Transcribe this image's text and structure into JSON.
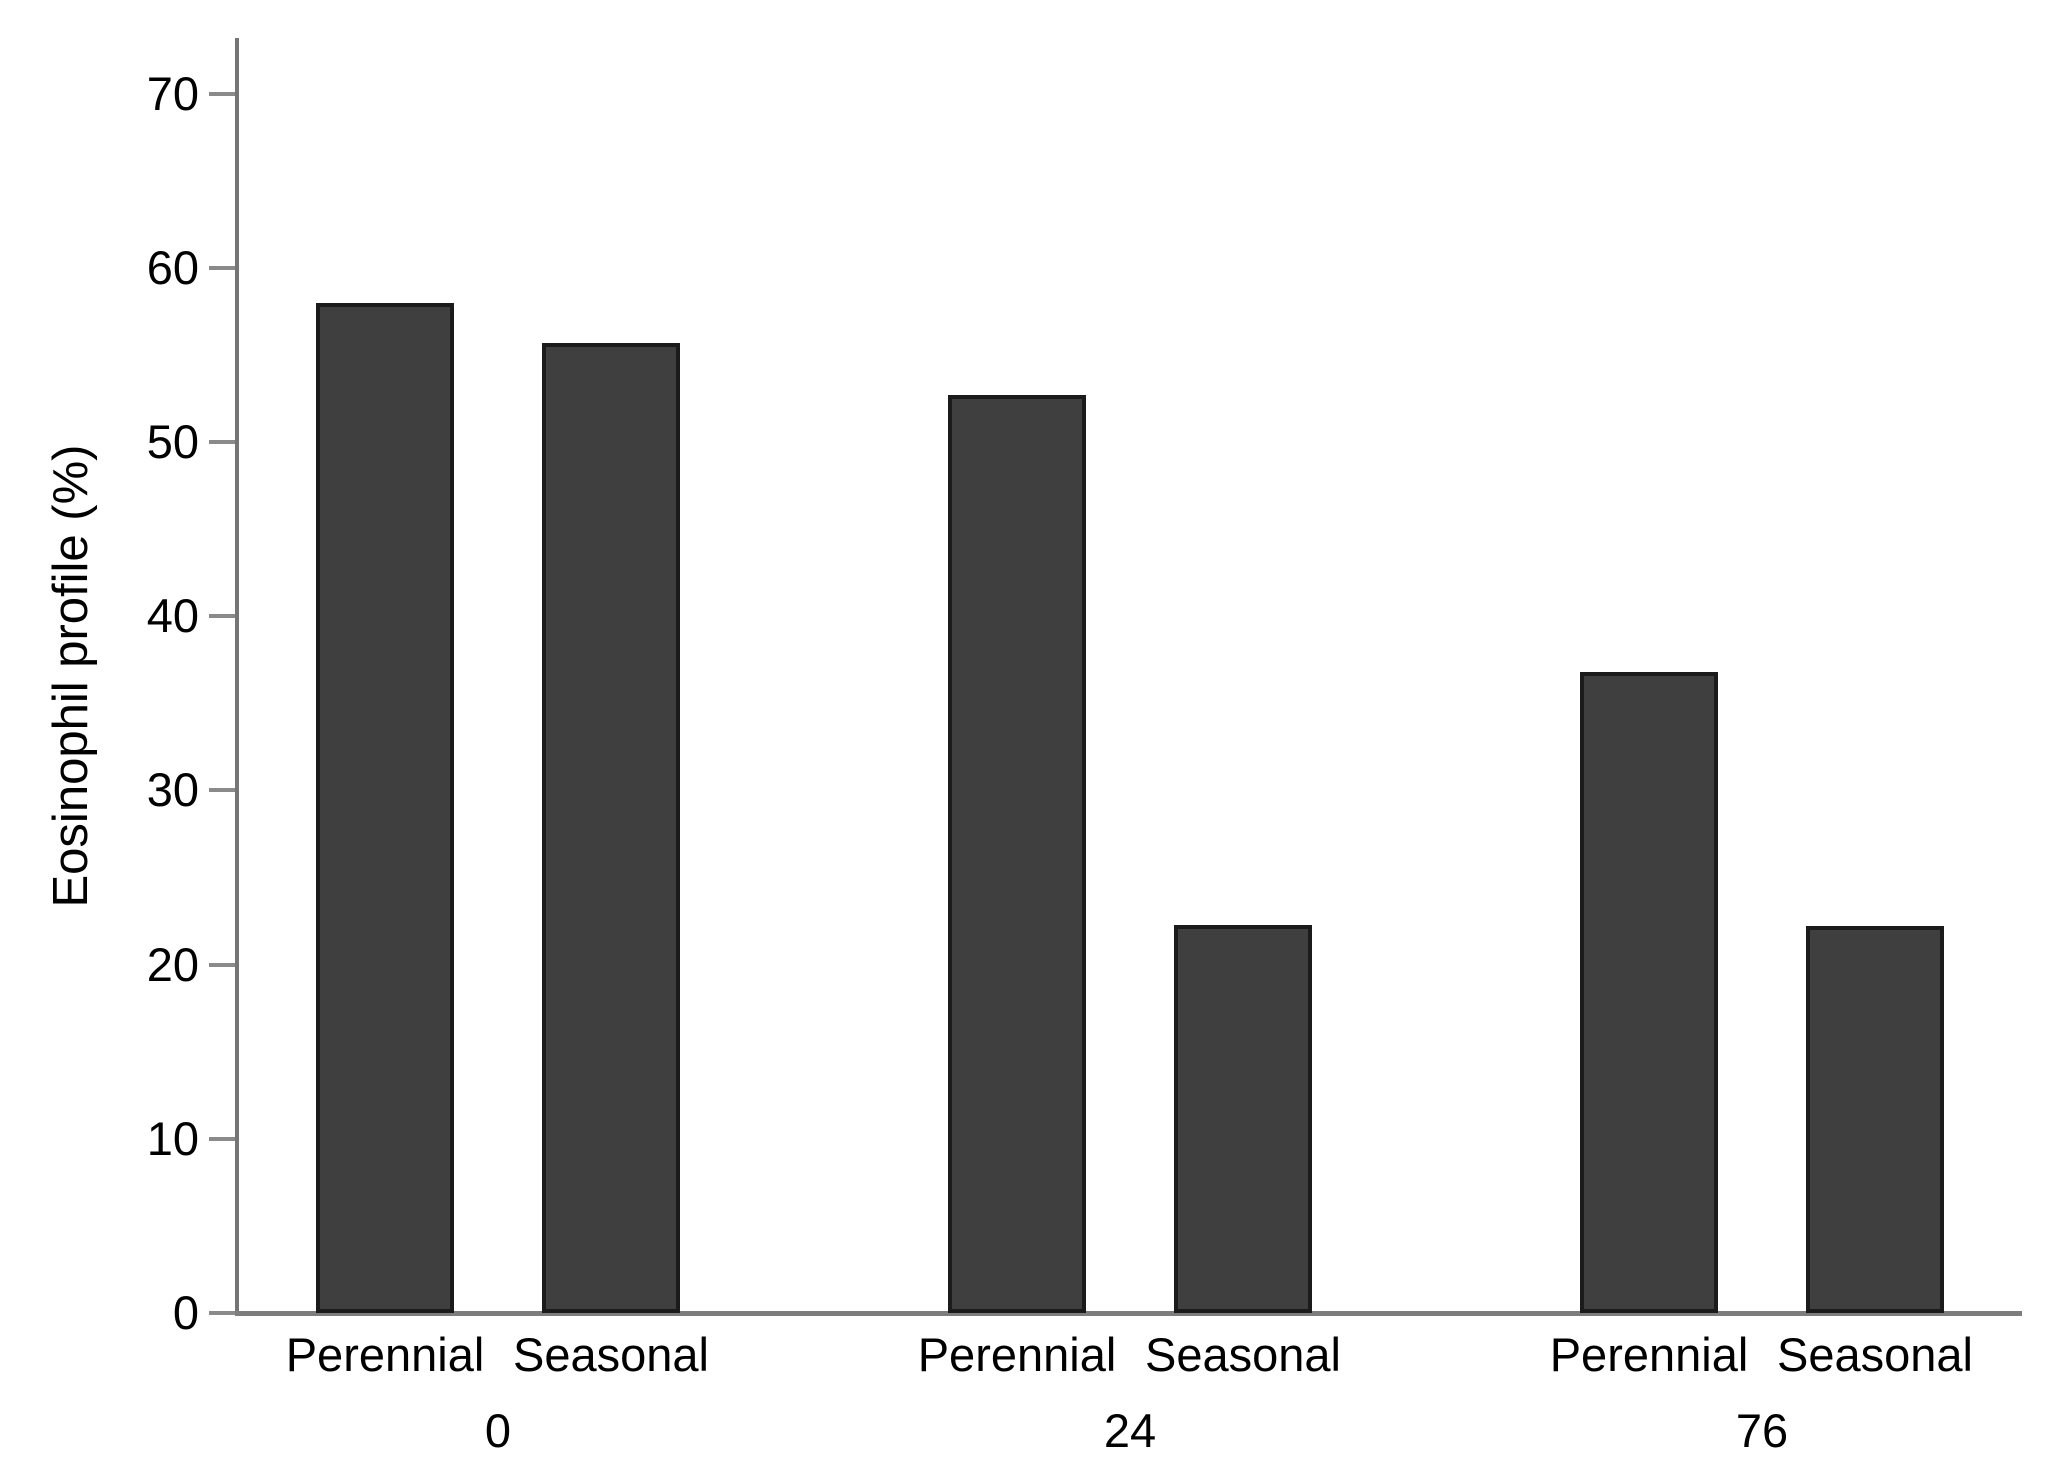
{
  "figure": {
    "background": "#ffffff"
  },
  "chart_data": {
    "type": "bar",
    "title": "",
    "xlabel": "",
    "ylabel": "Eosinophil profile (%)",
    "categories": [
      "0",
      "24",
      "76"
    ],
    "series": [
      {
        "name": "Perennial",
        "values": [
          58.0,
          52.7,
          36.8
        ]
      },
      {
        "name": "Seasonal",
        "values": [
          55.7,
          22.3,
          22.2
        ]
      }
    ],
    "yticks": [
      0,
      10,
      20,
      30,
      40,
      50,
      60,
      70
    ],
    "ylim": [
      0,
      73.2
    ],
    "grid": false,
    "legend_position": "none",
    "colors": {
      "bar_fill": "#3f3f3f",
      "bar_border": "#1b1b1b",
      "axis_line": "#7d7d7d",
      "text": "#000000",
      "background": "#ffffff"
    }
  }
}
